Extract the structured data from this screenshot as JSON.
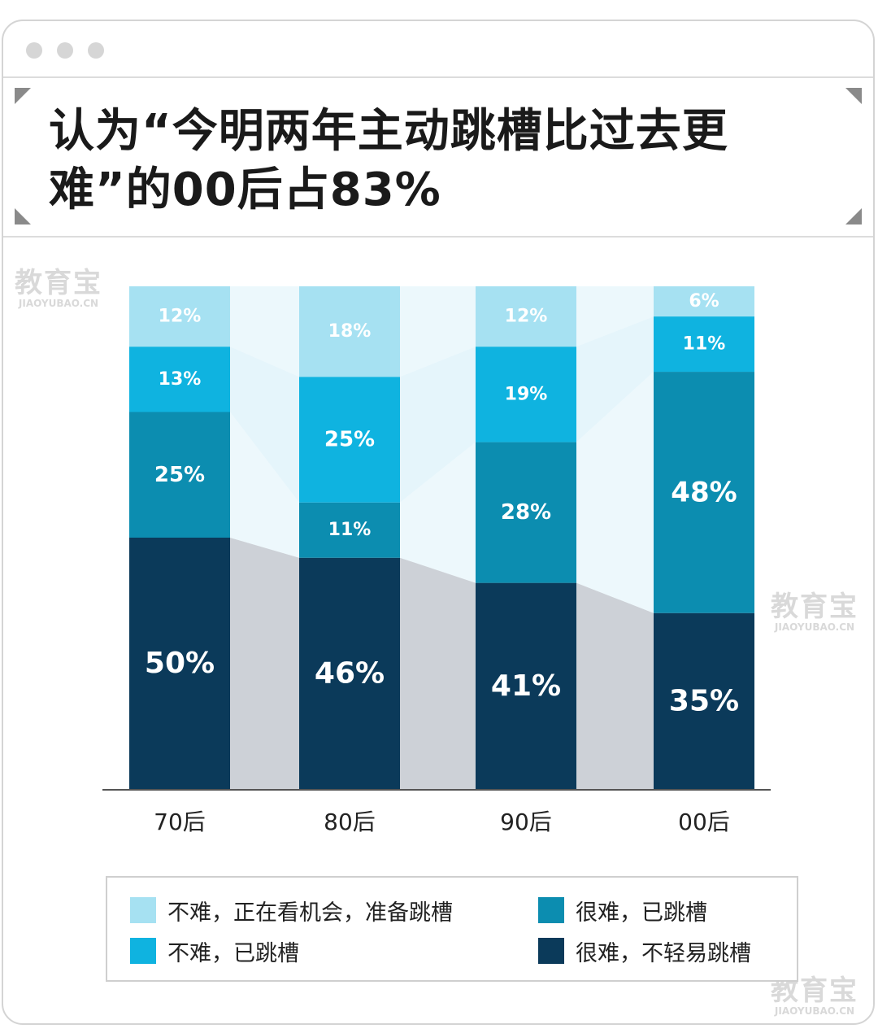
{
  "title": "认为“今明两年主动跳槽比过去更难”的00后占83%",
  "watermark": {
    "cn": "教育宝",
    "en": "JIAOYUBAO.CN"
  },
  "colors": {
    "s1": "#a6e1f2",
    "s2": "#0fb3e0",
    "s3": "#0c8db0",
    "s4": "#0b3a5a",
    "band_light": "#dff3fa",
    "band_grey": "#c8ccd3"
  },
  "chart_data": {
    "type": "bar",
    "stacked": true,
    "categories": [
      "70后",
      "80后",
      "90后",
      "00后"
    ],
    "series": [
      {
        "name": "很难，不轻易跳槽",
        "values": [
          50,
          46,
          41,
          35
        ],
        "labels": [
          "50%",
          "46%",
          "41%",
          "35%"
        ]
      },
      {
        "name": "很难，已跳槽",
        "values": [
          25,
          11,
          28,
          48
        ],
        "labels": [
          "25%",
          "11%",
          "28%",
          "48%"
        ]
      },
      {
        "name": "不难，已跳槽",
        "values": [
          13,
          25,
          19,
          11
        ],
        "labels": [
          "13%",
          "25%",
          "19%",
          "11%"
        ]
      },
      {
        "name": "不难，正在看机会，准备跳槽",
        "values": [
          12,
          18,
          12,
          6
        ],
        "labels": [
          "12%",
          "18%",
          "12%",
          "6%"
        ]
      }
    ],
    "ylim": [
      0,
      100
    ],
    "legend_position": "bottom"
  },
  "legend": [
    {
      "label": "不难，正在看机会，准备跳槽",
      "color_key": "s1"
    },
    {
      "label": "很难，已跳槽",
      "color_key": "s3"
    },
    {
      "label": "不难，已跳槽",
      "color_key": "s2"
    },
    {
      "label": "很难，不轻易跳槽",
      "color_key": "s4"
    }
  ]
}
